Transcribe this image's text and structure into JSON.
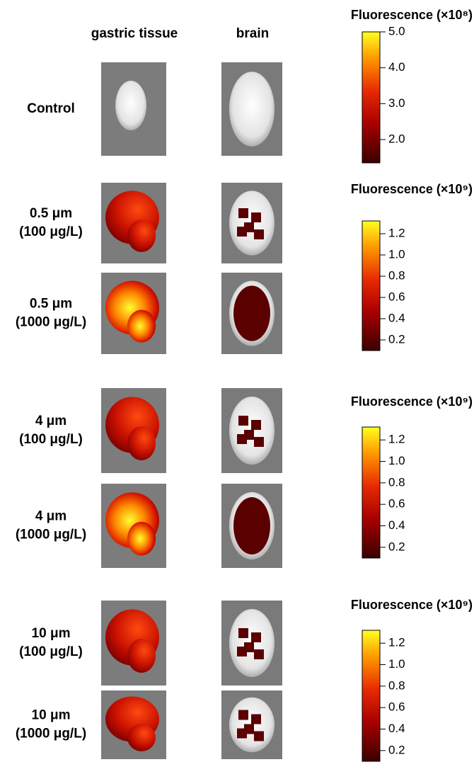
{
  "columns": [
    "gastric tissue",
    "brain"
  ],
  "rows": [
    {
      "label": [
        "Control"
      ]
    },
    {
      "label": [
        "0.5 μm",
        "(100 μg/L)"
      ]
    },
    {
      "label": [
        "0.5 μm",
        "(1000 μg/L)"
      ]
    },
    {
      "label": [
        "4 μm",
        "(100 μg/L)"
      ]
    },
    {
      "label": [
        "4 μm",
        "(1000 μg/L)"
      ]
    },
    {
      "label": [
        "10 μm",
        "(100 μg/L)"
      ]
    },
    {
      "label": [
        "10 μm",
        "(1000 μg/L)"
      ]
    }
  ],
  "colorbars": [
    {
      "title": "Fluorescence (×10⁸)",
      "lim": [
        1.35,
        5.0
      ],
      "ticks": [
        {
          "value": 5,
          "label": "5.0"
        },
        {
          "value": 4,
          "label": "4.0"
        },
        {
          "value": 3,
          "label": "3.0"
        },
        {
          "value": 2,
          "label": "2.0"
        }
      ]
    },
    {
      "title": "Fluorescence (×10⁹)",
      "lim": [
        0.1,
        1.32
      ],
      "ticks": [
        1.2,
        {
          "value": 1,
          "label": "1.0"
        },
        0.8,
        0.6,
        0.4,
        0.2
      ]
    },
    {
      "title": "Fluorescence (×10⁹)",
      "lim": [
        0.1,
        1.32
      ],
      "ticks": [
        1.2,
        {
          "value": 1,
          "label": "1.0"
        },
        0.8,
        0.6,
        0.4,
        0.2
      ]
    },
    {
      "title": "Fluorescence (×10⁹)",
      "lim": [
        0.1,
        1.32
      ],
      "ticks": [
        1.2,
        {
          "value": 1,
          "label": "1.0"
        },
        0.8,
        0.6,
        0.4,
        0.2
      ]
    }
  ]
}
